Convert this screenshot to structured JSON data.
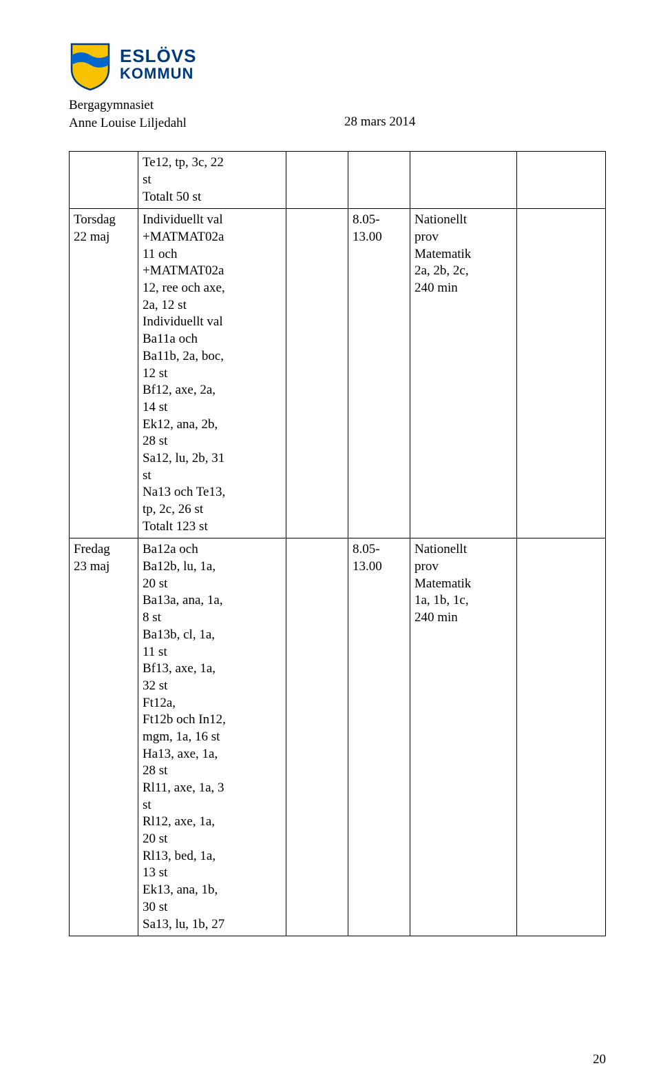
{
  "brand": {
    "line1": "ESLÖVS",
    "line2": "KOMMUN"
  },
  "subheader": {
    "school": "Bergagymnasiet",
    "author": "Anne Louise Liljedahl",
    "date": "28 mars 2014"
  },
  "logo": {
    "shield_fill": "#f9c200",
    "shield_stroke": "#003a78",
    "stripe_fill": "#0066cc"
  },
  "table": {
    "border_color": "#000000",
    "font_size_pt": 14,
    "rows": [
      {
        "day_lines": [],
        "desc_lines": [
          "Te12, tp, 3c, 22",
          "st",
          "Totalt 50 st"
        ],
        "time_lines": [],
        "note_lines": []
      },
      {
        "day_lines": [
          "Torsdag",
          "22 maj"
        ],
        "desc_lines": [
          "Individuellt val",
          "+MATMAT02a",
          "11 och",
          "+MATMAT02a",
          "12, ree och axe,",
          "2a, 12 st",
          "Individuellt val",
          "Ba11a och",
          "Ba11b, 2a, boc,",
          "12 st",
          "Bf12, axe, 2a,",
          "14 st",
          "Ek12, ana, 2b,",
          "28 st",
          "Sa12, lu, 2b, 31",
          "st",
          "Na13 och Te13,",
          "tp, 2c, 26 st",
          "Totalt 123 st"
        ],
        "time_lines": [
          "8.05-",
          "13.00"
        ],
        "note_lines": [
          "Nationellt",
          "prov",
          "Matematik",
          "2a, 2b, 2c,",
          "240 min"
        ]
      },
      {
        "day_lines": [
          "Fredag",
          "23 maj"
        ],
        "desc_lines": [
          "Ba12a och",
          "Ba12b, lu, 1a,",
          "20 st",
          "Ba13a, ana, 1a,",
          "8 st",
          "Ba13b, cl, 1a,",
          "11 st",
          "Bf13, axe, 1a,",
          "32 st",
          "Ft12a,",
          "Ft12b och In12,",
          "mgm, 1a, 16 st",
          "Ha13, axe, 1a,",
          "28 st",
          "Rl11, axe, 1a, 3",
          "st",
          "Rl12, axe, 1a,",
          "20 st",
          "Rl13, bed, 1a,",
          "13 st",
          "Ek13, ana, 1b,",
          "30 st",
          "Sa13, lu, 1b, 27"
        ],
        "time_lines": [
          "8.05-",
          "13.00"
        ],
        "note_lines": [
          "Nationellt",
          "prov",
          "Matematik",
          "1a, 1b, 1c,",
          "240 min"
        ]
      }
    ]
  },
  "page_number": "20"
}
